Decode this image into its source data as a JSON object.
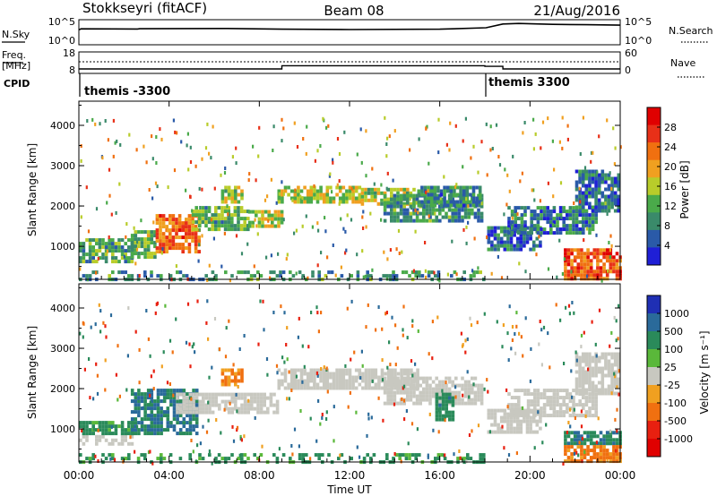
{
  "header": {
    "station": "Stokkseyri (fitACF)",
    "beam": "Beam 08",
    "date": "21/Aug/2016"
  },
  "nsky_panel": {
    "label": "N.Sky",
    "left_ticks": [
      "10^5",
      "10^0"
    ],
    "right_label": "N.Search",
    "right_ticks": [
      "10^5",
      "10^0"
    ]
  },
  "freq_panel": {
    "label_line1": "Freq.",
    "label_line2": "[MHz]",
    "left_ticks": [
      "18",
      "8"
    ],
    "right_label": "Nave",
    "right_ticks": [
      "60",
      "0"
    ]
  },
  "cpid": {
    "label": "CPID",
    "segments": [
      {
        "name": "themis -3300",
        "start_hour": 0,
        "end_hour": 18.05
      },
      {
        "name": "themis 3300",
        "start_hour": 18.05,
        "end_hour": 24
      }
    ]
  },
  "xaxis": {
    "label": "Time UT",
    "ticks": [
      "00:00",
      "04:00",
      "08:00",
      "12:00",
      "16:00",
      "20:00",
      "00:00"
    ]
  },
  "power_panel": {
    "ylabel": "Slant Range [km]",
    "yticks": [
      "1000",
      "2000",
      "3000",
      "4000"
    ],
    "colorbar_label": "Power [dB]",
    "colorbar_ticks": [
      "28",
      "24",
      "20",
      "16",
      "12",
      "8",
      "4"
    ]
  },
  "velocity_panel": {
    "ylabel": "Slant Range [km]",
    "yticks": [
      "1000",
      "2000",
      "3000",
      "4000"
    ],
    "colorbar_label": "Velocity [m s⁻¹]",
    "colorbar_ticks": [
      "1000",
      "500",
      "100",
      "25",
      "-25",
      "-100",
      "-500",
      "-1000"
    ]
  },
  "colors": {
    "power_scale": [
      "#1f1fd6",
      "#2a5aa8",
      "#3a8a6a",
      "#4aaa4a",
      "#b8cc2a",
      "#f0a020",
      "#f07010",
      "#e83018",
      "#e00000"
    ],
    "velocity_scale": [
      "#1f2fb4",
      "#2a6a9a",
      "#2a8a5a",
      "#5ab83a",
      "#c8c8c0",
      "#f0a020",
      "#f07010",
      "#e82010",
      "#e00000"
    ]
  },
  "chart_data": [
    {
      "type": "line",
      "name": "N.Sky",
      "x_unit": "hours UT",
      "x": [
        0,
        0.1,
        2.6,
        2.7,
        6.5,
        9,
        12,
        16,
        18.05,
        18.8,
        19.5,
        21,
        22.5,
        24
      ],
      "y": [
        1000,
        1500,
        1400,
        1600,
        1800,
        1300,
        1100,
        1300,
        2500,
        14000,
        18000,
        12000,
        10000,
        8000
      ],
      "ylim": [
        1,
        100000
      ],
      "yscale": "log"
    },
    {
      "type": "line",
      "name": "Frequency",
      "y_unit": "MHz",
      "x": [
        0,
        9,
        9,
        18,
        18,
        18.8,
        18.8,
        24
      ],
      "y": [
        10.1,
        10.1,
        11.6,
        11.6,
        11.3,
        11.3,
        10.1,
        10.1
      ],
      "ylim": [
        8,
        18
      ]
    },
    {
      "type": "heatmap",
      "name": "Power",
      "x_unit": "hours UT",
      "y_unit": "km",
      "xlim": [
        0,
        24
      ],
      "ylim": [
        180,
        4600
      ],
      "value_unit": "dB",
      "clim": [
        0,
        30
      ],
      "regions": [
        {
          "t0": 0,
          "t1": 2.3,
          "r0": 600,
          "r1": 1200,
          "level": 10
        },
        {
          "t0": 2.3,
          "t1": 3.4,
          "r0": 700,
          "r1": 1400,
          "level": 12
        },
        {
          "t0": 3.4,
          "t1": 5.3,
          "r0": 900,
          "r1": 1800,
          "level": 22
        },
        {
          "t0": 5.0,
          "t1": 7.5,
          "r0": 1400,
          "r1": 2000,
          "level": 11
        },
        {
          "t0": 6.3,
          "t1": 7.2,
          "r0": 2100,
          "r1": 2500,
          "level": 14
        },
        {
          "t0": 7.5,
          "t1": 9.0,
          "r0": 1500,
          "r1": 1900,
          "level": 15
        },
        {
          "t0": 8.8,
          "t1": 12.5,
          "r0": 2100,
          "r1": 2500,
          "level": 15
        },
        {
          "t0": 12.5,
          "t1": 15.0,
          "r0": 2050,
          "r1": 2450,
          "level": 14
        },
        {
          "t0": 13.5,
          "t1": 17.8,
          "r0": 1600,
          "r1": 2300,
          "level": 9
        },
        {
          "t0": 15.0,
          "t1": 17.8,
          "r0": 2000,
          "r1": 2500,
          "level": 8
        },
        {
          "t0": 18.1,
          "t1": 20.5,
          "r0": 900,
          "r1": 1500,
          "level": 6
        },
        {
          "t0": 19.0,
          "t1": 23.0,
          "r0": 1300,
          "r1": 2000,
          "level": 7
        },
        {
          "t0": 22.0,
          "t1": 24.0,
          "r0": 1900,
          "r1": 2900,
          "level": 6
        },
        {
          "t0": 21.5,
          "t1": 24.0,
          "r0": 200,
          "r1": 950,
          "level": 24
        },
        {
          "t0": 0,
          "t1": 18.0,
          "r0": 180,
          "r1": 400,
          "level": 9
        }
      ]
    },
    {
      "type": "heatmap",
      "name": "Velocity",
      "x_unit": "hours UT",
      "y_unit": "km",
      "xlim": [
        0,
        24
      ],
      "ylim": [
        180,
        4600
      ],
      "value_unit": "m s-1",
      "clim": [
        -1000,
        1000
      ],
      "regions": [
        {
          "t0": 0,
          "t1": 2.3,
          "r0": 600,
          "r1": 850,
          "level": 0
        },
        {
          "t0": 0,
          "t1": 2.3,
          "r0": 850,
          "r1": 1200,
          "level": 200
        },
        {
          "t0": 2.3,
          "t1": 5.3,
          "r0": 900,
          "r1": 2000,
          "level": 500
        },
        {
          "t0": 4.3,
          "t1": 8.8,
          "r0": 1400,
          "r1": 1900,
          "level": 0
        },
        {
          "t0": 6.3,
          "t1": 7.3,
          "r0": 2100,
          "r1": 2500,
          "level": -150
        },
        {
          "t0": 8.8,
          "t1": 15.0,
          "r0": 2000,
          "r1": 2500,
          "level": 0
        },
        {
          "t0": 13.5,
          "t1": 17.8,
          "r0": 1600,
          "r1": 2300,
          "level": 0
        },
        {
          "t0": 15.8,
          "t1": 16.6,
          "r0": 1200,
          "r1": 1900,
          "level": 300
        },
        {
          "t0": 18.1,
          "t1": 20.5,
          "r0": 900,
          "r1": 1500,
          "level": 0
        },
        {
          "t0": 19.0,
          "t1": 23.0,
          "r0": 1300,
          "r1": 2000,
          "level": 0
        },
        {
          "t0": 22.0,
          "t1": 24.0,
          "r0": 1900,
          "r1": 2900,
          "level": 0
        },
        {
          "t0": 21.5,
          "t1": 24.0,
          "r0": 600,
          "r1": 950,
          "level": 400
        },
        {
          "t0": 21.5,
          "t1": 24.0,
          "r0": 200,
          "r1": 600,
          "level": -200
        },
        {
          "t0": 0,
          "t1": 18.0,
          "r0": 180,
          "r1": 400,
          "level": 150
        }
      ]
    }
  ]
}
